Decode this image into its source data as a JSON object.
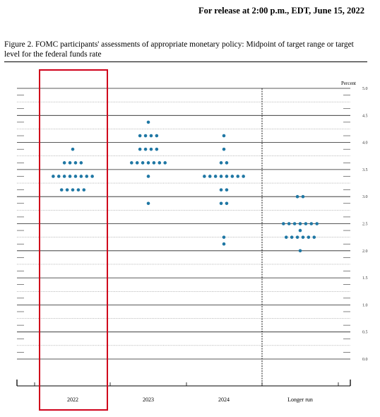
{
  "header": {
    "release": "For release at 2:00 p.m., EDT, June 15, 2022",
    "caption": "Figure 2.  FOMC participants' assessments of appropriate monetary policy: Midpoint of target range or target level for the federal funds rate"
  },
  "highlight_color": "#d0021b",
  "dot_color": "#1f77a4",
  "chart_data": {
    "type": "scatter",
    "ylabel": "Percent",
    "ylim": [
      0,
      5
    ],
    "yticks": [
      "0.0",
      "0.5",
      "1.0",
      "1.5",
      "2.0",
      "2.5",
      "3.0",
      "3.5",
      "4.0",
      "4.5",
      "5.0"
    ],
    "categories": [
      "2022",
      "2023",
      "2024",
      "Longer run"
    ],
    "highlighted_category": "2022",
    "dots": [
      {
        "category": "2022",
        "levels": [
          {
            "y": 3.875,
            "count": 1
          },
          {
            "y": 3.625,
            "count": 4
          },
          {
            "y": 3.375,
            "count": 8
          },
          {
            "y": 3.125,
            "count": 5
          }
        ]
      },
      {
        "category": "2023",
        "levels": [
          {
            "y": 4.375,
            "count": 1
          },
          {
            "y": 4.125,
            "count": 4
          },
          {
            "y": 3.875,
            "count": 4
          },
          {
            "y": 3.625,
            "count": 7
          },
          {
            "y": 3.375,
            "count": 1
          },
          {
            "y": 2.875,
            "count": 1
          }
        ]
      },
      {
        "category": "2024",
        "levels": [
          {
            "y": 4.125,
            "count": 1
          },
          {
            "y": 3.875,
            "count": 1
          },
          {
            "y": 3.625,
            "count": 2
          },
          {
            "y": 3.375,
            "count": 8
          },
          {
            "y": 3.125,
            "count": 2
          },
          {
            "y": 2.875,
            "count": 2
          },
          {
            "y": 2.25,
            "count": 1
          },
          {
            "y": 2.125,
            "count": 1
          }
        ]
      },
      {
        "category": "Longer run",
        "levels": [
          {
            "y": 3.0,
            "count": 2
          },
          {
            "y": 2.5,
            "count": 7
          },
          {
            "y": 2.375,
            "count": 1
          },
          {
            "y": 2.25,
            "count": 6
          },
          {
            "y": 2.0,
            "count": 1
          }
        ]
      }
    ]
  }
}
